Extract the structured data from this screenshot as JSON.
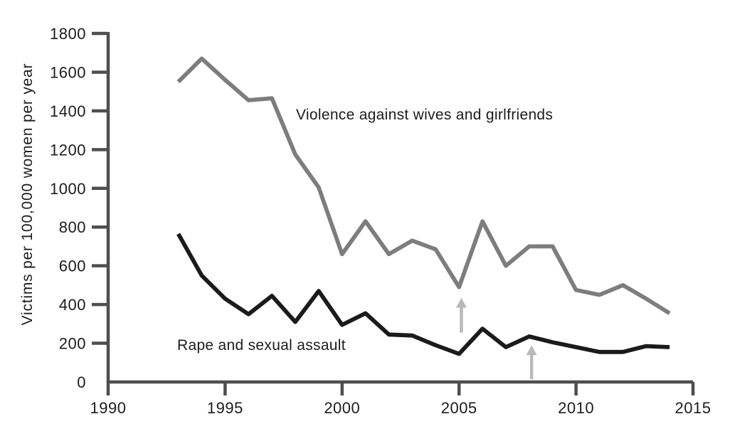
{
  "figure": {
    "background": "#ffffff"
  },
  "chart_data": {
    "type": "line",
    "title": "",
    "xlabel": "",
    "ylabel": "Victims per 100,000 women per year",
    "xlim": [
      1990,
      2015
    ],
    "ylim": [
      0,
      1800
    ],
    "yticks": [
      0,
      200,
      400,
      600,
      800,
      1000,
      1200,
      1400,
      1600,
      1800
    ],
    "xticks": [
      1990,
      1995,
      2000,
      2005,
      2010,
      2015
    ],
    "grid": false,
    "legend_position": "inline-labels",
    "axis_color": "#4e4e4e",
    "text_color": "#1c1c1c",
    "annotation_color": "#b9b9b9",
    "x": [
      1993,
      1994,
      1995,
      1996,
      1997,
      1998,
      1999,
      2000,
      2001,
      2002,
      2003,
      2004,
      2005,
      2006,
      2007,
      2008,
      2009,
      2010,
      2011,
      2012,
      2013,
      2014
    ],
    "series": [
      {
        "name": "Violence against wives and girlfriends",
        "color": "#7d7d7d",
        "values": [
          1550,
          1670,
          1560,
          1455,
          1465,
          1175,
          1005,
          660,
          830,
          660,
          730,
          685,
          490,
          830,
          600,
          700,
          700,
          475,
          450,
          500,
          430,
          355
        ]
      },
      {
        "name": "Rape and sexual assault",
        "color": "#1b1b1b",
        "values": [
          765,
          550,
          430,
          350,
          445,
          310,
          470,
          295,
          355,
          245,
          240,
          190,
          145,
          275,
          180,
          235,
          205,
          180,
          155,
          155,
          185,
          180
        ]
      }
    ],
    "annotations": [
      {
        "type": "up-arrow",
        "x_year": 2005.1,
        "value_from": 255,
        "value_to": 435
      },
      {
        "type": "up-arrow",
        "x_year": 2008.1,
        "value_from": 15,
        "value_to": 190
      }
    ]
  }
}
